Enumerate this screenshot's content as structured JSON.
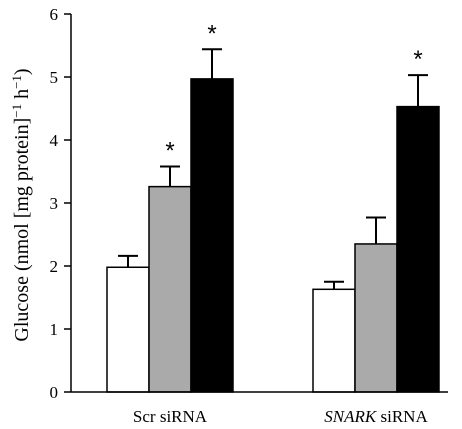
{
  "chart_data": {
    "type": "bar",
    "ylabel_parts": [
      "Glucose (nmol [mg protein]",
      "−1",
      " h",
      "−1",
      ")"
    ],
    "ylim": [
      0,
      6
    ],
    "yticks": [
      "0",
      "1",
      "2",
      "3",
      "4",
      "5",
      "6"
    ],
    "groups": [
      {
        "label_italic": "",
        "label_normal": "Scr siRNA"
      },
      {
        "label_italic": "SNARK",
        "label_normal": " siRNA"
      }
    ],
    "series": [
      {
        "color": "#ffffff",
        "values": [
          1.98,
          1.63
        ],
        "errors": [
          0.18,
          0.12
        ],
        "significance": [
          "",
          ""
        ]
      },
      {
        "color": "#aaaaaa",
        "values": [
          3.26,
          2.35
        ],
        "errors": [
          0.32,
          0.42
        ],
        "significance": [
          "*",
          ""
        ]
      },
      {
        "color": "#000000",
        "values": [
          4.97,
          4.53
        ],
        "errors": [
          0.47,
          0.5
        ],
        "significance": [
          "*",
          "*"
        ]
      }
    ]
  }
}
